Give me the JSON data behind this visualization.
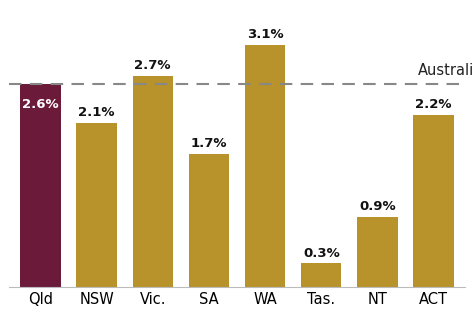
{
  "categories": [
    "Qld",
    "NSW",
    "Vic.",
    "SA",
    "WA",
    "Tas.",
    "NT",
    "ACT"
  ],
  "values": [
    2.6,
    2.1,
    2.7,
    1.7,
    3.1,
    0.3,
    0.9,
    2.2
  ],
  "bar_colors": [
    "#6b1a3a",
    "#b8922a",
    "#b8922a",
    "#b8922a",
    "#b8922a",
    "#b8922a",
    "#b8922a",
    "#b8922a"
  ],
  "australia_line": 2.6,
  "australia_label": "Australia",
  "background_color": "#ffffff",
  "label_fontsize": 9.5,
  "tick_fontsize": 10.5,
  "australia_fontsize": 10.5,
  "value_label_color_qld": "#ffffff",
  "value_label_color_others": "#111111",
  "dashed_line_color": "#888888",
  "ylim": [
    0,
    3.55
  ]
}
